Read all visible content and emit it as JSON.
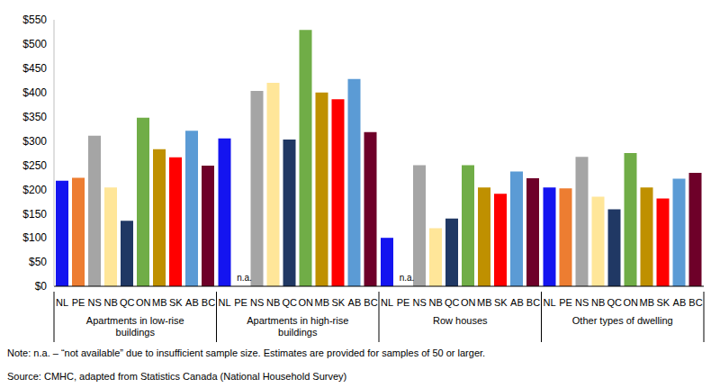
{
  "chart_data": {
    "type": "bar",
    "categories": [
      "Apartments in low-rise buildings",
      "Apartments in high-rise buildings",
      "Row houses",
      "Other types of dwelling"
    ],
    "series": [
      {
        "name": "NL",
        "color": "#1414f0",
        "values": [
          218,
          305,
          100,
          204
        ]
      },
      {
        "name": "PE",
        "color": "#ed7d31",
        "values": [
          224,
          null,
          null,
          202
        ],
        "value_labels": [
          null,
          "n.a.",
          "n.a.",
          null
        ]
      },
      {
        "name": "NS",
        "color": "#a5a5a5",
        "values": [
          311,
          403,
          250,
          267
        ]
      },
      {
        "name": "NB",
        "color": "#ffe699",
        "values": [
          204,
          420,
          120,
          185
        ]
      },
      {
        "name": "QC",
        "color": "#203864",
        "values": [
          135,
          303,
          140,
          159
        ]
      },
      {
        "name": "ON",
        "color": "#70ad47",
        "values": [
          348,
          529,
          250,
          275
        ]
      },
      {
        "name": "MB",
        "color": "#bf9000",
        "values": [
          283,
          400,
          204,
          204
        ]
      },
      {
        "name": "SK",
        "color": "#ff0000",
        "values": [
          266,
          386,
          191,
          181
        ]
      },
      {
        "name": "AB",
        "color": "#5b9bd5",
        "values": [
          321,
          428,
          237,
          222
        ]
      },
      {
        "name": "BC",
        "color": "#6e0029",
        "values": [
          249,
          318,
          223,
          234
        ]
      }
    ],
    "ylim": [
      0,
      550
    ],
    "yticks": [
      {
        "value": 0,
        "label": "$0"
      },
      {
        "value": 50,
        "label": "$50"
      },
      {
        "value": 100,
        "label": "$100"
      },
      {
        "value": 150,
        "label": "$150"
      },
      {
        "value": 200,
        "label": "$200"
      },
      {
        "value": 250,
        "label": "$250"
      },
      {
        "value": 300,
        "label": "$300"
      },
      {
        "value": 350,
        "label": "$350"
      },
      {
        "value": 400,
        "label": "$400"
      },
      {
        "value": 450,
        "label": "$450"
      },
      {
        "value": 500,
        "label": "$500"
      },
      {
        "value": 550,
        "label": "$550"
      }
    ],
    "grid": false,
    "annotations": [
      "Note: n.a. – “not available” due to insufficient sample size. Estimates are provided for samples of 50 or larger.",
      "Source: CMHC, adapted from Statistics Canada (National Household Survey)"
    ]
  }
}
